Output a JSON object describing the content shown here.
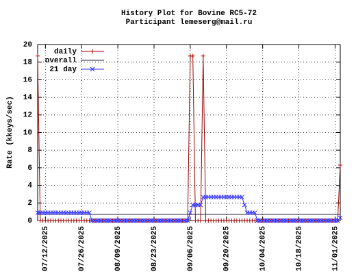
{
  "chart_data": {
    "type": "line",
    "title": "History Plot for Bovine RC5-72",
    "subtitle": "Participant lemeserg@mail.ru",
    "y_label": "Rate (kkeys/sec)",
    "x": [
      "07/09/2025",
      "07/10/2025",
      "07/11/2025",
      "07/12/2025",
      "07/13/2025",
      "07/14/2025",
      "07/15/2025",
      "07/16/2025",
      "07/17/2025",
      "07/18/2025",
      "07/19/2025",
      "07/20/2025",
      "07/21/2025",
      "07/22/2025",
      "07/23/2025",
      "07/24/2025",
      "07/25/2025",
      "07/26/2025",
      "07/27/2025",
      "07/28/2025",
      "07/29/2025",
      "07/30/2025",
      "07/31/2025",
      "08/01/2025",
      "08/02/2025",
      "08/03/2025",
      "08/04/2025",
      "08/05/2025",
      "08/06/2025",
      "08/07/2025",
      "08/08/2025",
      "08/09/2025",
      "08/10/2025",
      "08/11/2025",
      "08/12/2025",
      "08/13/2025",
      "08/14/2025",
      "08/15/2025",
      "08/16/2025",
      "08/17/2025",
      "08/18/2025",
      "08/19/2025",
      "08/20/2025",
      "08/21/2025",
      "08/22/2025",
      "08/23/2025",
      "08/24/2025",
      "08/25/2025",
      "08/26/2025",
      "08/27/2025",
      "08/28/2025",
      "08/29/2025",
      "08/30/2025",
      "08/31/2025",
      "09/01/2025",
      "09/02/2025",
      "09/03/2025",
      "09/04/2025",
      "09/05/2025",
      "09/06/2025",
      "09/07/2025",
      "09/08/2025",
      "09/09/2025",
      "09/10/2025",
      "09/11/2025",
      "09/12/2025",
      "09/13/2025",
      "09/14/2025",
      "09/15/2025",
      "09/16/2025",
      "09/17/2025",
      "09/18/2025",
      "09/19/2025",
      "09/20/2025",
      "09/21/2025",
      "09/22/2025",
      "09/23/2025",
      "09/24/2025",
      "09/25/2025",
      "09/26/2025",
      "09/27/2025",
      "09/28/2025",
      "09/29/2025",
      "09/30/2025",
      "10/01/2025",
      "10/02/2025",
      "10/03/2025",
      "10/04/2025",
      "10/05/2025",
      "10/06/2025",
      "10/07/2025",
      "10/08/2025",
      "10/09/2025",
      "10/10/2025",
      "10/11/2025",
      "10/12/2025",
      "10/13/2025",
      "10/14/2025",
      "10/15/2025",
      "10/16/2025",
      "10/17/2025",
      "10/18/2025",
      "10/19/2025",
      "10/20/2025",
      "10/21/2025",
      "10/22/2025",
      "10/23/2025",
      "10/24/2025",
      "10/25/2025",
      "10/26/2025",
      "10/27/2025",
      "10/28/2025",
      "10/29/2025",
      "10/30/2025",
      "10/31/2025",
      "11/01/2025",
      "11/02/2025",
      "11/03/2025"
    ],
    "series": [
      {
        "name": "daily",
        "color": "#a00000",
        "marker": "plus",
        "values": [
          18.7,
          0,
          0,
          0,
          0,
          0,
          0,
          0,
          0,
          0,
          0,
          0,
          0,
          0,
          0,
          0,
          0,
          0,
          0,
          0,
          0,
          0,
          0,
          0,
          0,
          0,
          0,
          0,
          0,
          0,
          0,
          0,
          0,
          0,
          0,
          0,
          0,
          0,
          0,
          0,
          0,
          0,
          0,
          0,
          0,
          0,
          0,
          0,
          0,
          0,
          0,
          0,
          0,
          0,
          0,
          0,
          0,
          0,
          0,
          18.7,
          18.7,
          0,
          0,
          0,
          18.7,
          0,
          0,
          0,
          0,
          0,
          0,
          0,
          0,
          0,
          0,
          0,
          0,
          0,
          0,
          0,
          0,
          0,
          0,
          0,
          0,
          0,
          0,
          0,
          0,
          0,
          0,
          0,
          0,
          0,
          0,
          0,
          0,
          0,
          0,
          0,
          0,
          0,
          0,
          0,
          0,
          0,
          0,
          0,
          0,
          0,
          0,
          0,
          0,
          0,
          0,
          0,
          0,
          6.3
        ]
      },
      {
        "name": "overall",
        "color": "#202040",
        "marker": "none",
        "values": [
          0.7,
          0.7,
          0.7,
          0.7,
          0.7,
          0.7,
          0.7,
          0.7,
          0.7,
          0.7,
          0.7,
          0.7,
          0.7,
          0.7,
          0.7,
          0.7,
          0.7,
          0.7,
          0.7,
          0.7,
          0.7,
          0.7,
          0.7,
          0.7,
          0.7,
          0.7,
          0.7,
          0.7,
          0.7,
          0.7,
          0.7,
          0.7,
          0.7,
          0.7,
          0.7,
          0.7,
          0.7,
          0.7,
          0.7,
          0.7,
          0.7,
          0.7,
          0.7,
          0.7,
          0.7,
          0.7,
          0.7,
          0.7,
          0.7,
          0.7,
          0.7,
          0.7,
          0.7,
          0.7,
          0.7,
          0.7,
          0.7,
          0.7,
          0.7,
          0.7,
          0.7,
          0.7,
          0.7,
          0.7,
          0.7,
          0.7,
          0.7,
          0.7,
          0.7,
          0.7,
          0.7,
          0.7,
          0.7,
          0.7,
          0.7,
          0.7,
          0.7,
          0.7,
          0.7,
          0.7,
          0.7,
          0.7,
          0.7,
          0.7,
          0.7,
          0.7,
          0.7,
          0.7,
          0.7,
          0.7,
          0.7,
          0.7,
          0.7,
          0.7,
          0.7,
          0.7,
          0.7,
          0.7,
          0.7,
          0.7,
          0.7,
          0.7,
          0.7,
          0.7,
          0.7,
          0.7,
          0.7,
          0.7,
          0.7,
          0.7,
          0.7,
          0.7,
          0.7,
          0.7,
          0.7,
          0.7,
          0.7,
          0.7
        ]
      },
      {
        "name": "21 day",
        "color": "#3333ff",
        "marker": "cross",
        "values": [
          0.89,
          0.89,
          0.89,
          0.89,
          0.89,
          0.89,
          0.89,
          0.89,
          0.89,
          0.89,
          0.89,
          0.89,
          0.89,
          0.89,
          0.89,
          0.89,
          0.89,
          0.89,
          0.89,
          0.89,
          0.89,
          0,
          0,
          0,
          0,
          0,
          0,
          0,
          0,
          0,
          0,
          0,
          0,
          0,
          0,
          0,
          0,
          0,
          0,
          0,
          0,
          0,
          0,
          0,
          0,
          0,
          0,
          0,
          0,
          0,
          0,
          0,
          0,
          0,
          0,
          0,
          0,
          0,
          0,
          0.89,
          1.78,
          1.78,
          1.78,
          1.78,
          2.67,
          2.67,
          2.67,
          2.67,
          2.67,
          2.67,
          2.67,
          2.67,
          2.67,
          2.67,
          2.67,
          2.67,
          2.67,
          2.67,
          2.67,
          2.67,
          1.78,
          0.89,
          0.89,
          0.89,
          0.89,
          0,
          0,
          0,
          0,
          0,
          0,
          0,
          0,
          0,
          0,
          0,
          0,
          0,
          0,
          0,
          0,
          0,
          0,
          0,
          0,
          0,
          0,
          0,
          0,
          0,
          0,
          0,
          0,
          0,
          0,
          0,
          0,
          0.3
        ]
      }
    ],
    "xlim": [
      "07/09/2025",
      "11/03/2025"
    ],
    "xticks": [
      "07/12/2025",
      "07/26/2025",
      "08/09/2025",
      "08/23/2025",
      "09/06/2025",
      "09/20/2025",
      "10/04/2025",
      "10/18/2025",
      "11/01/2025"
    ],
    "ylim": [
      0,
      20
    ],
    "yticks": [
      0,
      2,
      4,
      6,
      8,
      10,
      12,
      14,
      16,
      18,
      20
    ],
    "grid": true,
    "legend": "upper left"
  }
}
